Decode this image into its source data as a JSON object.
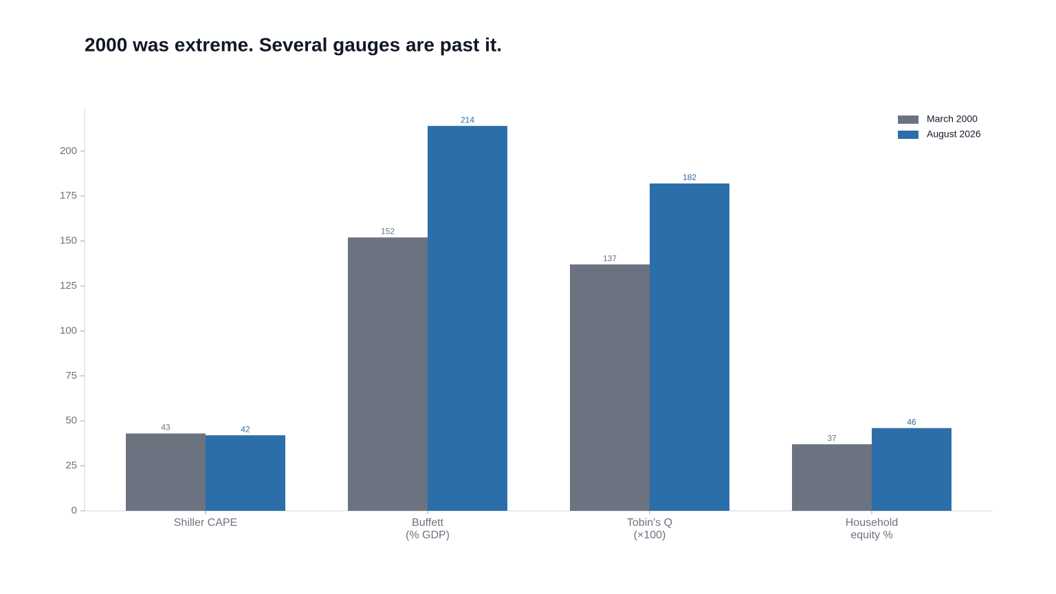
{
  "chart_data": {
    "type": "bar",
    "title": "2000 was extreme. Several gauges are past it.",
    "categories": [
      "Shiller CAPE",
      "Buffett\n(% GDP)",
      "Tobin's Q\n(×100)",
      "Household\nequity %"
    ],
    "series": [
      {
        "name": "March 2000",
        "color": "#6b7280",
        "values": [
          43,
          152,
          137,
          37
        ]
      },
      {
        "name": "August 2026",
        "color": "#2c6ea9",
        "values": [
          42,
          214,
          182,
          46
        ]
      }
    ],
    "ylim": [
      0,
      224
    ],
    "yticks": [
      0,
      25,
      50,
      75,
      100,
      125,
      150,
      175,
      200
    ],
    "grid": false,
    "legend": "upper right"
  }
}
